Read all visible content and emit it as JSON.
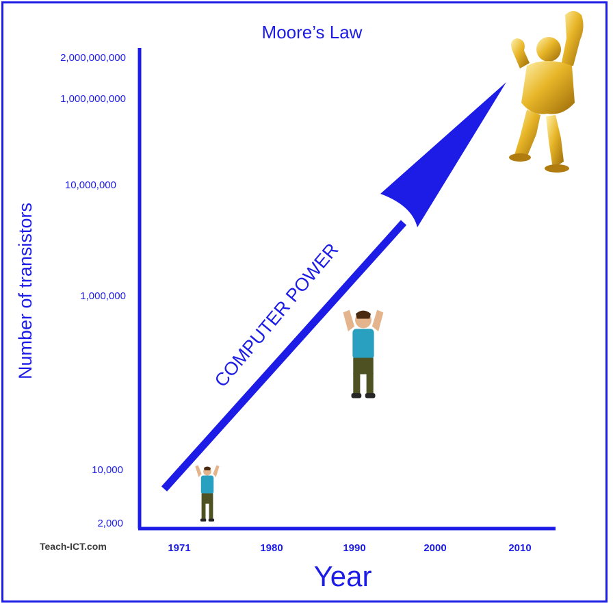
{
  "chart_data": {
    "type": "line",
    "title": "Moore’s Law",
    "xlabel": "Year",
    "ylabel": "Number of transistors",
    "x_ticks": [
      "1971",
      "1980",
      "1990",
      "2000",
      "2010"
    ],
    "y_ticks": [
      "2,000,000,000",
      "1,000,000,000",
      "10,000,000",
      "1,000,000",
      "10,000",
      "2,000"
    ],
    "y_scale": "log",
    "series": [
      {
        "label": "COMPUTER POWER",
        "x": [
          1971,
          2010
        ],
        "y": [
          2300,
          1000000000
        ],
        "color": "#1c1ce6"
      }
    ],
    "watermark": "Teach-ICT.com",
    "grid": false,
    "legend": "none"
  }
}
